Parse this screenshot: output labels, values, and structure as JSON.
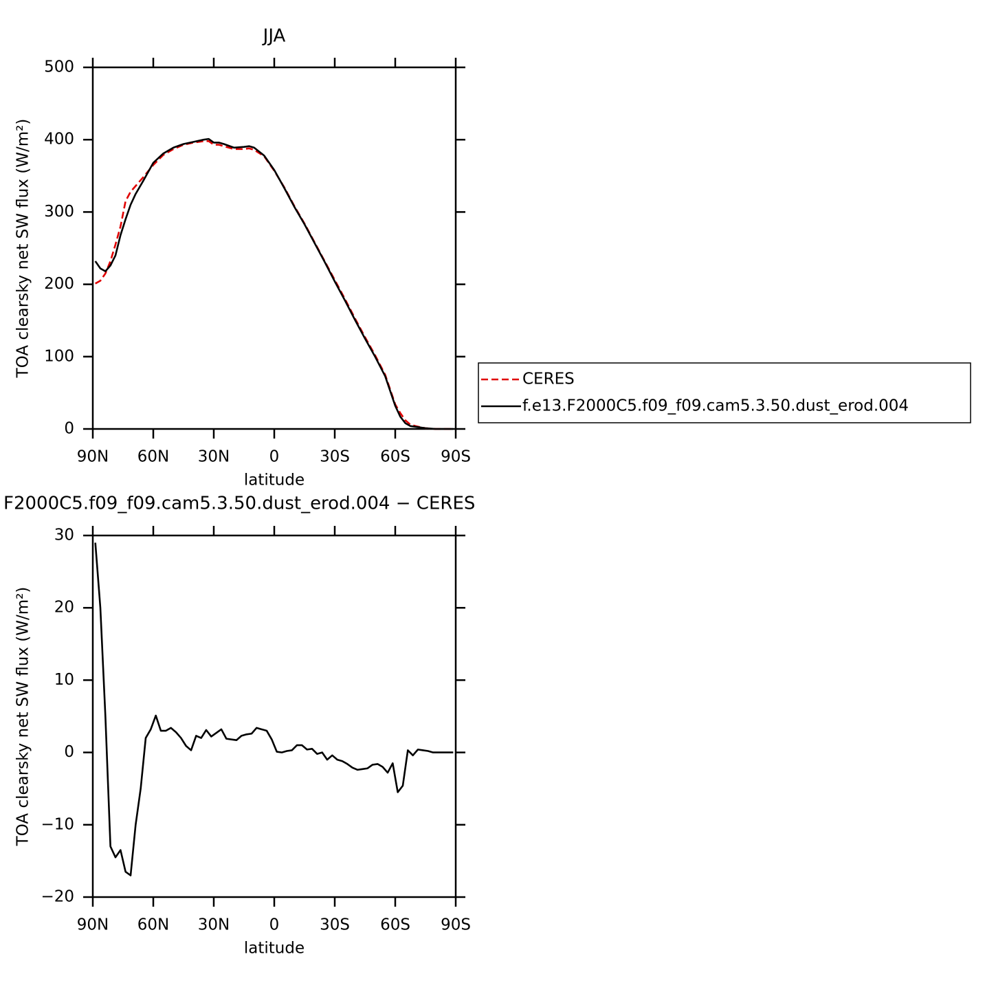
{
  "chart_data": [
    {
      "type": "line",
      "title": "JJA",
      "xlabel": "latitude",
      "ylabel": "TOA clearsky net SW flux (W/m²)",
      "x": [
        88.75,
        86.25,
        83.75,
        81.25,
        78.75,
        76.25,
        73.75,
        71.25,
        68.75,
        65,
        60,
        55,
        50,
        45,
        40,
        35,
        32.5,
        30,
        27.5,
        25,
        20,
        15,
        12.5,
        10,
        5,
        0,
        -5,
        -10,
        -15,
        -20,
        -25,
        -30,
        -35,
        -40,
        -45,
        -50,
        -55,
        -60,
        -62.5,
        -65,
        -67.5,
        -70,
        -75,
        -80,
        -85,
        -88.75
      ],
      "series": [
        {
          "name": "CERES",
          "color": "#e00000",
          "dash": true,
          "values": [
            201,
            205,
            215,
            232,
            255,
            280,
            315,
            328,
            336,
            348,
            365,
            379,
            387,
            393,
            396,
            398,
            398,
            393,
            393,
            391,
            387,
            387,
            388,
            386,
            377,
            357,
            334,
            308,
            284,
            258,
            232,
            206,
            180,
            153,
            127,
            102,
            75,
            34,
            22,
            12,
            6,
            4,
            1,
            0,
            0,
            0
          ]
        },
        {
          "name": "f.e13.F2000C5.f09_f09.cam5.3.50.dust_erod.004",
          "color": "#000000",
          "dash": false,
          "values": [
            232,
            222,
            218,
            226,
            240,
            268,
            290,
            310,
            325,
            343,
            368,
            381,
            389,
            394,
            397,
            400,
            401,
            396,
            396,
            394,
            389,
            390,
            391,
            389,
            378,
            358,
            333,
            307,
            283,
            257,
            231,
            204,
            178,
            151,
            125,
            100,
            73,
            32,
            17,
            8,
            4,
            3,
            1,
            0,
            0,
            0
          ]
        }
      ],
      "xlim": [
        90,
        -90
      ],
      "xticks": [
        {
          "value": 90,
          "label": "90N"
        },
        {
          "value": 60,
          "label": "60N"
        },
        {
          "value": 30,
          "label": "30N"
        },
        0,
        {
          "value": -30,
          "label": "30S"
        },
        {
          "value": -60,
          "label": "60S"
        },
        {
          "value": -90,
          "label": "90S"
        }
      ],
      "ylim": [
        0,
        500
      ],
      "yticks": [
        0,
        100,
        200,
        300,
        400,
        500
      ]
    },
    {
      "type": "line",
      "title": "F2000C5.f09_f09.cam5.3.50.dust_erod.004 − CERES",
      "xlabel": "latitude",
      "ylabel": "TOA clearsky net SW flux (W/m²)",
      "x": [
        88.75,
        86.25,
        83.75,
        81.25,
        78.75,
        76.25,
        73.75,
        71.25,
        68.75,
        66.25,
        63.75,
        61.25,
        58.75,
        56.25,
        53.75,
        51.25,
        48.75,
        46.25,
        43.75,
        41.25,
        38.75,
        36.25,
        33.75,
        31.25,
        28.75,
        26.25,
        23.75,
        21.25,
        18.75,
        16.25,
        13.75,
        11.25,
        8.75,
        6.25,
        3.75,
        1.25,
        -1.25,
        -3.75,
        -6.25,
        -8.75,
        -11.25,
        -13.75,
        -16.25,
        -18.75,
        -21.25,
        -23.75,
        -26.25,
        -28.75,
        -31.25,
        -33.75,
        -36.25,
        -38.75,
        -41.25,
        -43.75,
        -46.25,
        -48.75,
        -51.25,
        -53.75,
        -56.25,
        -58.75,
        -61.25,
        -63.75,
        -66.25,
        -68.75,
        -71.25,
        -73.75,
        -76.25,
        -78.75,
        -81.25,
        -83.75,
        -86.25,
        -88.75
      ],
      "series": [
        {
          "color": "#000000",
          "dash": false,
          "values": [
            29,
            20,
            5,
            -13,
            -14.5,
            -13.5,
            -16.5,
            -17,
            -10,
            -5,
            2,
            3.2,
            5.1,
            3,
            3,
            3.4,
            2.8,
            2,
            0.9,
            0.3,
            2.3,
            2,
            3.1,
            2.2,
            2.7,
            3.2,
            1.9,
            1.8,
            1.7,
            2.3,
            2.5,
            2.6,
            3.4,
            3.2,
            3,
            1.8,
            0.1,
            0,
            0.2,
            0.3,
            1,
            1,
            0.4,
            0.5,
            -0.2,
            0,
            -1,
            -0.4,
            -1,
            -1.2,
            -1.6,
            -2.1,
            -2.4,
            -2.3,
            -2.2,
            -1.7,
            -1.6,
            -2,
            -2.8,
            -1.5,
            -5.5,
            -4.6,
            0.3,
            -0.4,
            0.4,
            0.3,
            0.2,
            0,
            0,
            0,
            0,
            0
          ]
        }
      ],
      "xlim": [
        90,
        -90
      ],
      "xticks": [
        {
          "value": 90,
          "label": "90N"
        },
        {
          "value": 60,
          "label": "60N"
        },
        {
          "value": 30,
          "label": "30N"
        },
        0,
        {
          "value": -30,
          "label": "30S"
        },
        {
          "value": -60,
          "label": "60S"
        },
        {
          "value": -90,
          "label": "90S"
        }
      ],
      "ylim": [
        -20,
        30
      ],
      "yticks": [
        {
          "value": -20,
          "label": "−20"
        },
        {
          "value": -10,
          "label": "−10"
        },
        0,
        10,
        20,
        30
      ]
    }
  ]
}
